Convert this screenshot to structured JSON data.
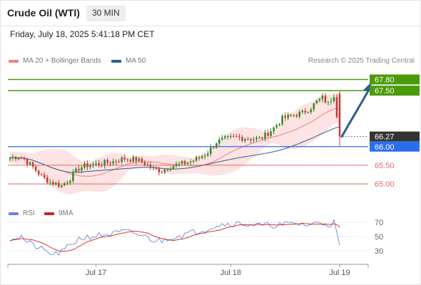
{
  "header": {
    "title": "Crude Oil (WTI)",
    "timeframe": "30 MIN",
    "datetime": "Friday, July 18, 2025 5:41:18 PM CET"
  },
  "legend": {
    "ma20_label": "MA 20 + Bollinger Bands",
    "ma50_label": "MA 50",
    "credit": "Research © 2025 Trading Central"
  },
  "rsi_legend": {
    "rsi_label": "RSI",
    "ma9_label": "9MA"
  },
  "colors": {
    "green_level": "#4a9a0a",
    "blue_level": "#2a6ef0",
    "red_level": "#e06a6a",
    "ma20": "#f08080",
    "ma50": "#2c5d8f",
    "band_fill": "#fde0e0",
    "candle_up": "#2f8a1f",
    "candle_down": "#c43a3a",
    "arrow": "#2c5d8f",
    "current_badge": "#333333",
    "rsi_line": "#6b86d6",
    "rsi_ma9": "#d02020"
  },
  "chart_data": {
    "type": "candlestick",
    "instrument": "Crude Oil (WTI)",
    "interval": "30 MIN",
    "ylim": [
      64.62,
      68.02
    ],
    "x_tick_labels": [
      "Jul 17",
      "Jul 18",
      "Jul 19"
    ],
    "x_tick_index": [
      30,
      77,
      115
    ],
    "candle_count": 116,
    "levels": [
      {
        "label": "67.80",
        "value": 67.8,
        "kind": "resistance"
      },
      {
        "label": "67.50",
        "value": 67.5,
        "kind": "resistance"
      },
      {
        "label": "66.27",
        "value": 66.27,
        "kind": "current"
      },
      {
        "label": "66.00",
        "value": 66.0,
        "kind": "pivot"
      },
      {
        "label": "65.50",
        "value": 65.5,
        "kind": "support"
      },
      {
        "label": "65.00",
        "value": 65.0,
        "kind": "support"
      }
    ],
    "anchors": [
      [
        0,
        65.7
      ],
      [
        3,
        65.74
      ],
      [
        5,
        65.66
      ],
      [
        8,
        65.45
      ],
      [
        11,
        65.2
      ],
      [
        14,
        65.05
      ],
      [
        18,
        64.95
      ],
      [
        21,
        65.15
      ],
      [
        24,
        65.42
      ],
      [
        27,
        65.5
      ],
      [
        32,
        65.55
      ],
      [
        36,
        65.6
      ],
      [
        40,
        65.68
      ],
      [
        44,
        65.65
      ],
      [
        47,
        65.55
      ],
      [
        50,
        65.4
      ],
      [
        53,
        65.35
      ],
      [
        56,
        65.48
      ],
      [
        59,
        65.52
      ],
      [
        63,
        65.6
      ],
      [
        66,
        65.7
      ],
      [
        69,
        65.85
      ],
      [
        72,
        66.12
      ],
      [
        75,
        66.2
      ],
      [
        79,
        66.25
      ],
      [
        83,
        66.22
      ],
      [
        87,
        66.2
      ],
      [
        89,
        66.3
      ],
      [
        92,
        66.5
      ],
      [
        95,
        66.75
      ],
      [
        99,
        66.85
      ],
      [
        102,
        66.9
      ],
      [
        105,
        67.05
      ],
      [
        107,
        67.2
      ],
      [
        109,
        67.3
      ],
      [
        111,
        67.15
      ],
      [
        113,
        67.4
      ],
      [
        115,
        66.3
      ]
    ],
    "projection": {
      "from_index": 115,
      "from": 66.27,
      "to_index": 123,
      "to": 67.8
    },
    "rsi": {
      "levels": [
        70,
        50,
        30
      ],
      "ylim": [
        20,
        80
      ],
      "anchors": [
        [
          0,
          48
        ],
        [
          4,
          50
        ],
        [
          6,
          42
        ],
        [
          9,
          36
        ],
        [
          12,
          30
        ],
        [
          15,
          25
        ],
        [
          18,
          28
        ],
        [
          21,
          38
        ],
        [
          24,
          47
        ],
        [
          28,
          50
        ],
        [
          32,
          52
        ],
        [
          36,
          54
        ],
        [
          40,
          57
        ],
        [
          44,
          54
        ],
        [
          47,
          50
        ],
        [
          50,
          45
        ],
        [
          53,
          44
        ],
        [
          56,
          49
        ],
        [
          60,
          52
        ],
        [
          64,
          56
        ],
        [
          68,
          60
        ],
        [
          72,
          66
        ],
        [
          76,
          68
        ],
        [
          80,
          68
        ],
        [
          84,
          67
        ],
        [
          88,
          65
        ],
        [
          92,
          66
        ],
        [
          96,
          67
        ],
        [
          100,
          68
        ],
        [
          104,
          66
        ],
        [
          108,
          70
        ],
        [
          111,
          67
        ],
        [
          113,
          70
        ],
        [
          115,
          38
        ]
      ]
    }
  }
}
